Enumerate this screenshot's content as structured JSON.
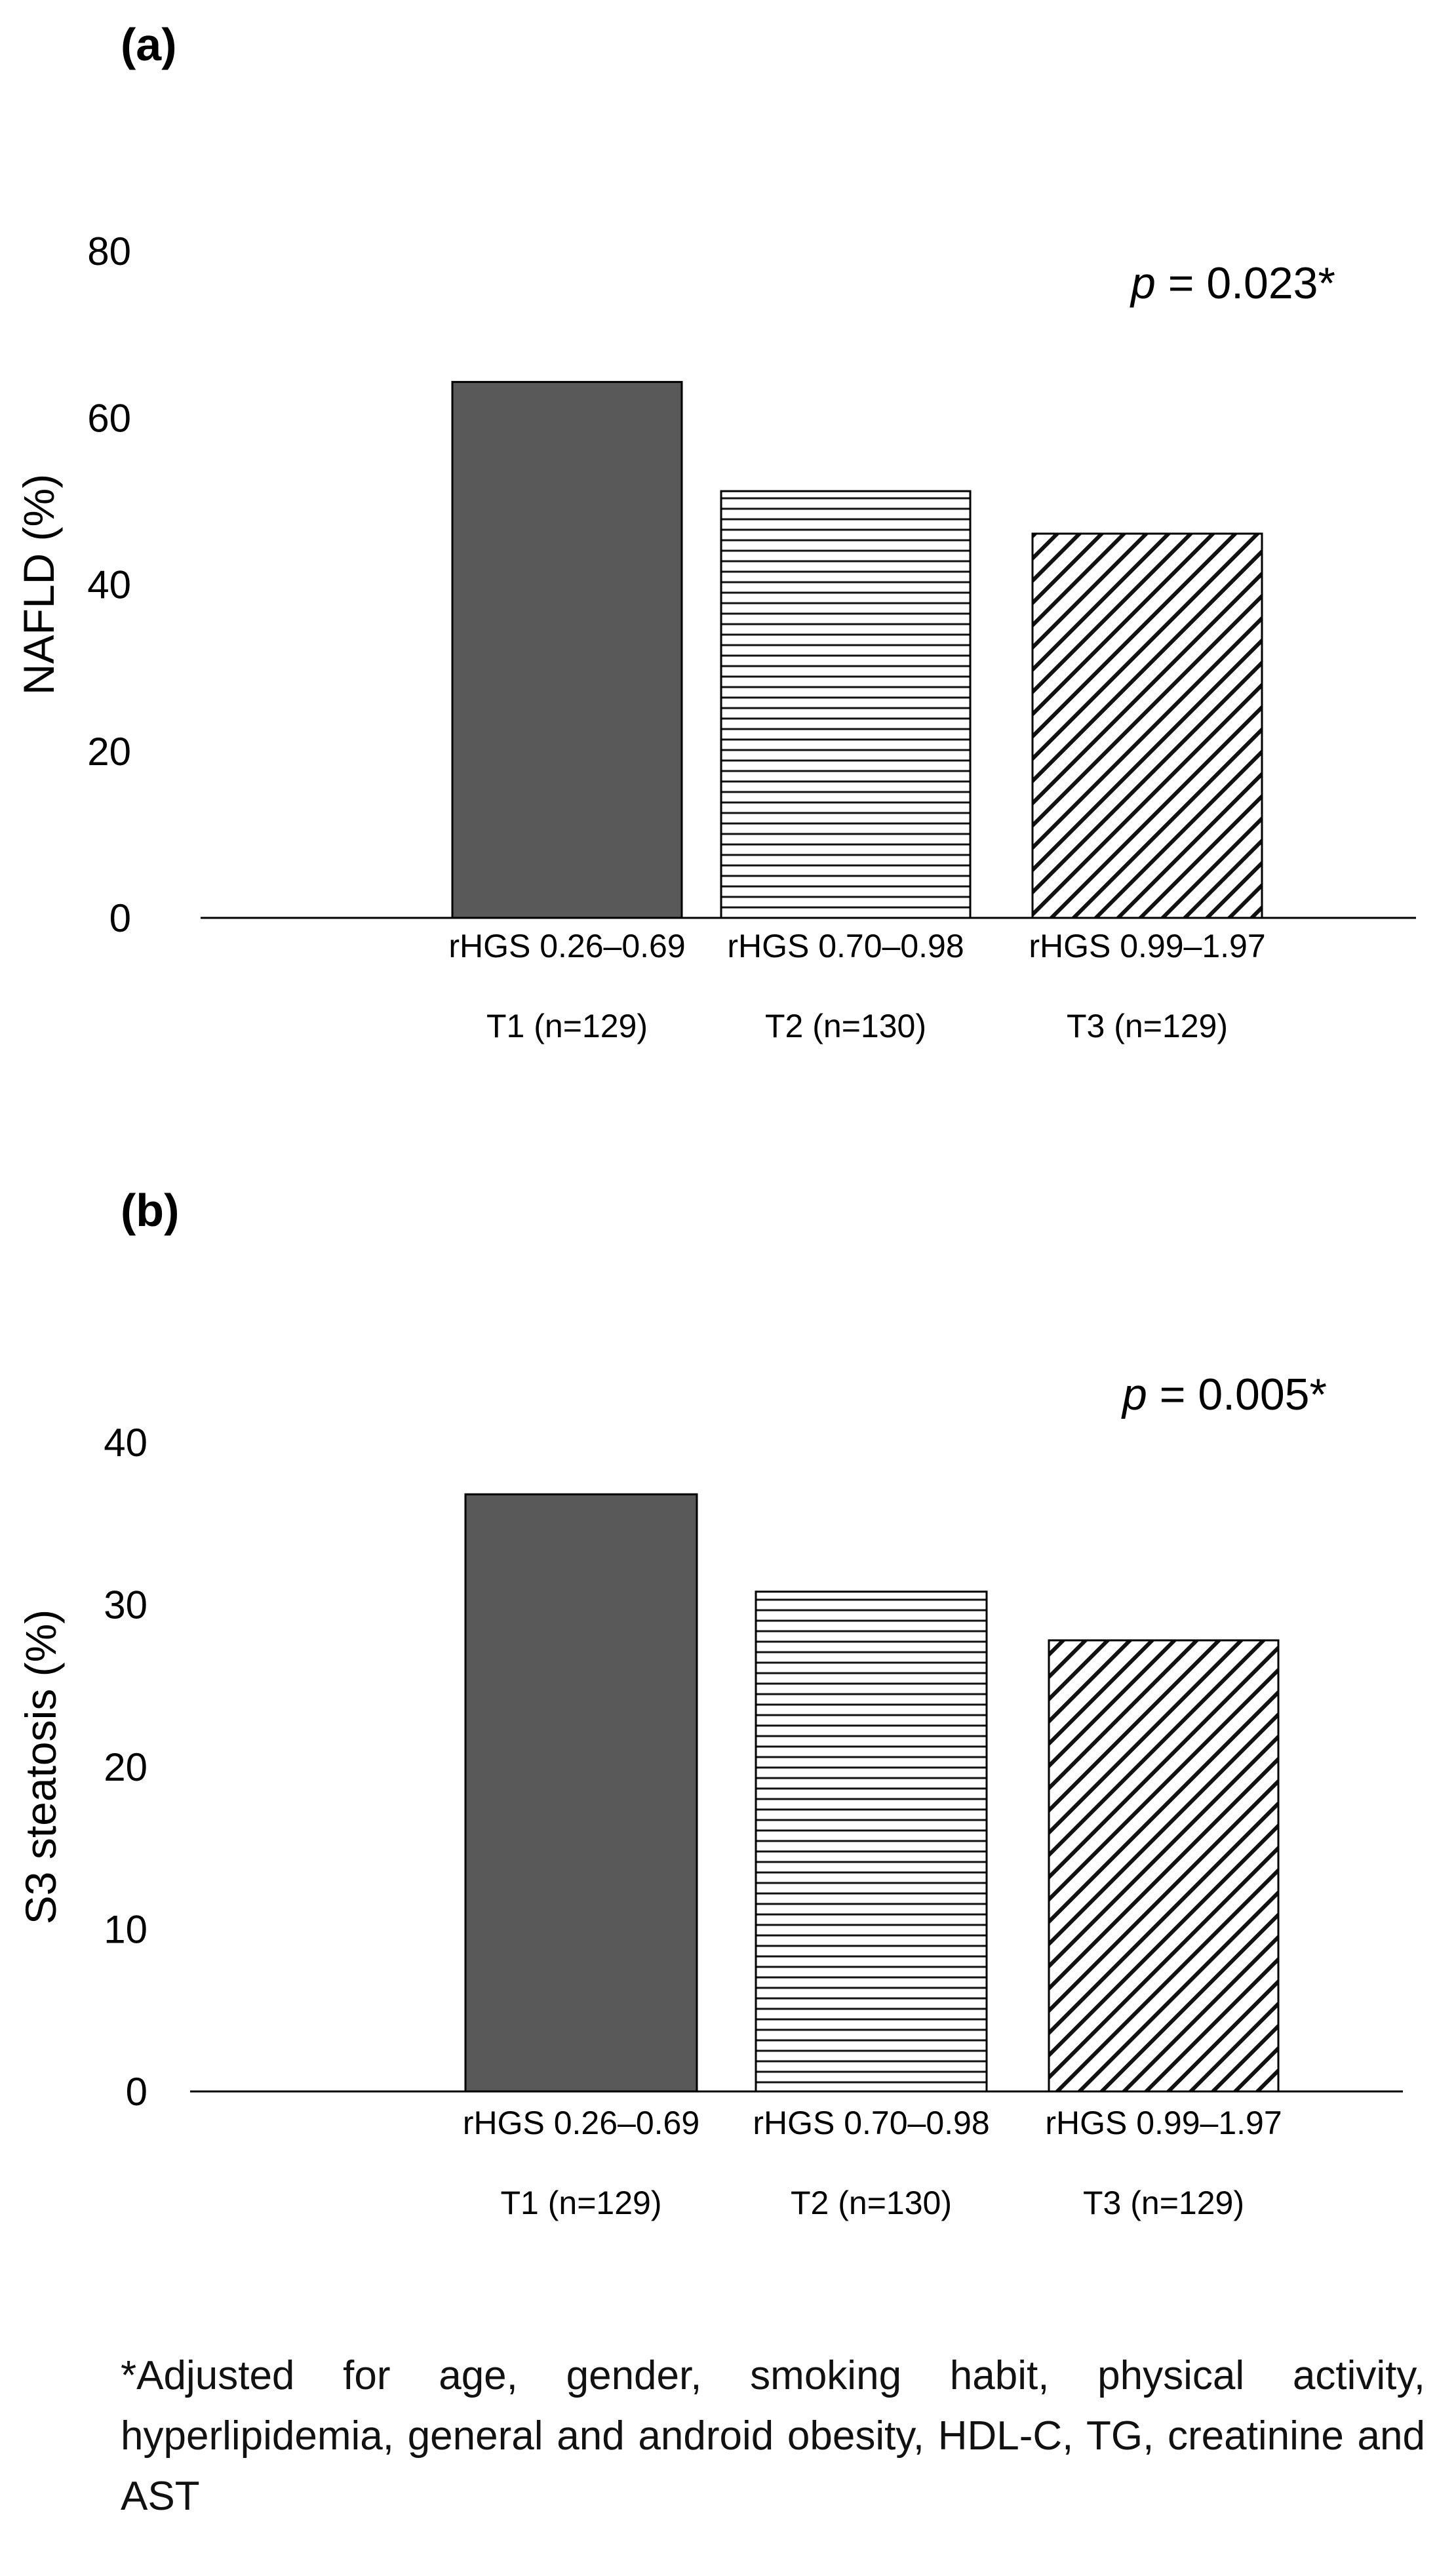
{
  "colors": {
    "axis": "#000000",
    "bar_solid": "#595959",
    "bar_edge": "#000000",
    "pattern": "#111111",
    "background": "#ffffff"
  },
  "chart_data": [
    {
      "type": "bar",
      "panel_label": "(a)",
      "title": "",
      "xlabel": "",
      "ylabel": "NAFLD (%)",
      "ylim": [
        0,
        80
      ],
      "yticks": [
        0,
        20,
        40,
        60,
        80
      ],
      "grid": false,
      "categories": [
        "rHGS 0.26–0.69",
        "rHGS 0.70–0.98",
        "rHGS 0.99–1.97"
      ],
      "subcategories": [
        "T1 (n=129)",
        "T2 (n=130)",
        "T3 (n=129)"
      ],
      "values": [
        64.3,
        51.2,
        46.1
      ],
      "fills": [
        "solid",
        "horizontal-lines",
        "diagonal-lines"
      ],
      "annotation": {
        "p_symbol": "p",
        "p_text": " = 0.023*"
      }
    },
    {
      "type": "bar",
      "panel_label": "(b)",
      "title": "",
      "xlabel": "",
      "ylabel": "S3 steatosis (%)",
      "ylim": [
        0,
        40
      ],
      "yticks": [
        0,
        10,
        20,
        30,
        40
      ],
      "grid": false,
      "categories": [
        "rHGS 0.26–0.69",
        "rHGS 0.70–0.98",
        "rHGS 0.99–1.97"
      ],
      "subcategories": [
        "T1 (n=129)",
        "T2 (n=130)",
        "T3 (n=129)"
      ],
      "values": [
        36.8,
        30.8,
        27.8
      ],
      "fills": [
        "solid",
        "horizontal-lines",
        "diagonal-lines"
      ],
      "annotation": {
        "p_symbol": "p",
        "p_text": " = 0.005*"
      }
    }
  ],
  "footnote": "*Adjusted for age, gender, smoking habit, physical activity, hyperlipidemia, general and android obesity, HDL-C, TG, creatinine and AST"
}
